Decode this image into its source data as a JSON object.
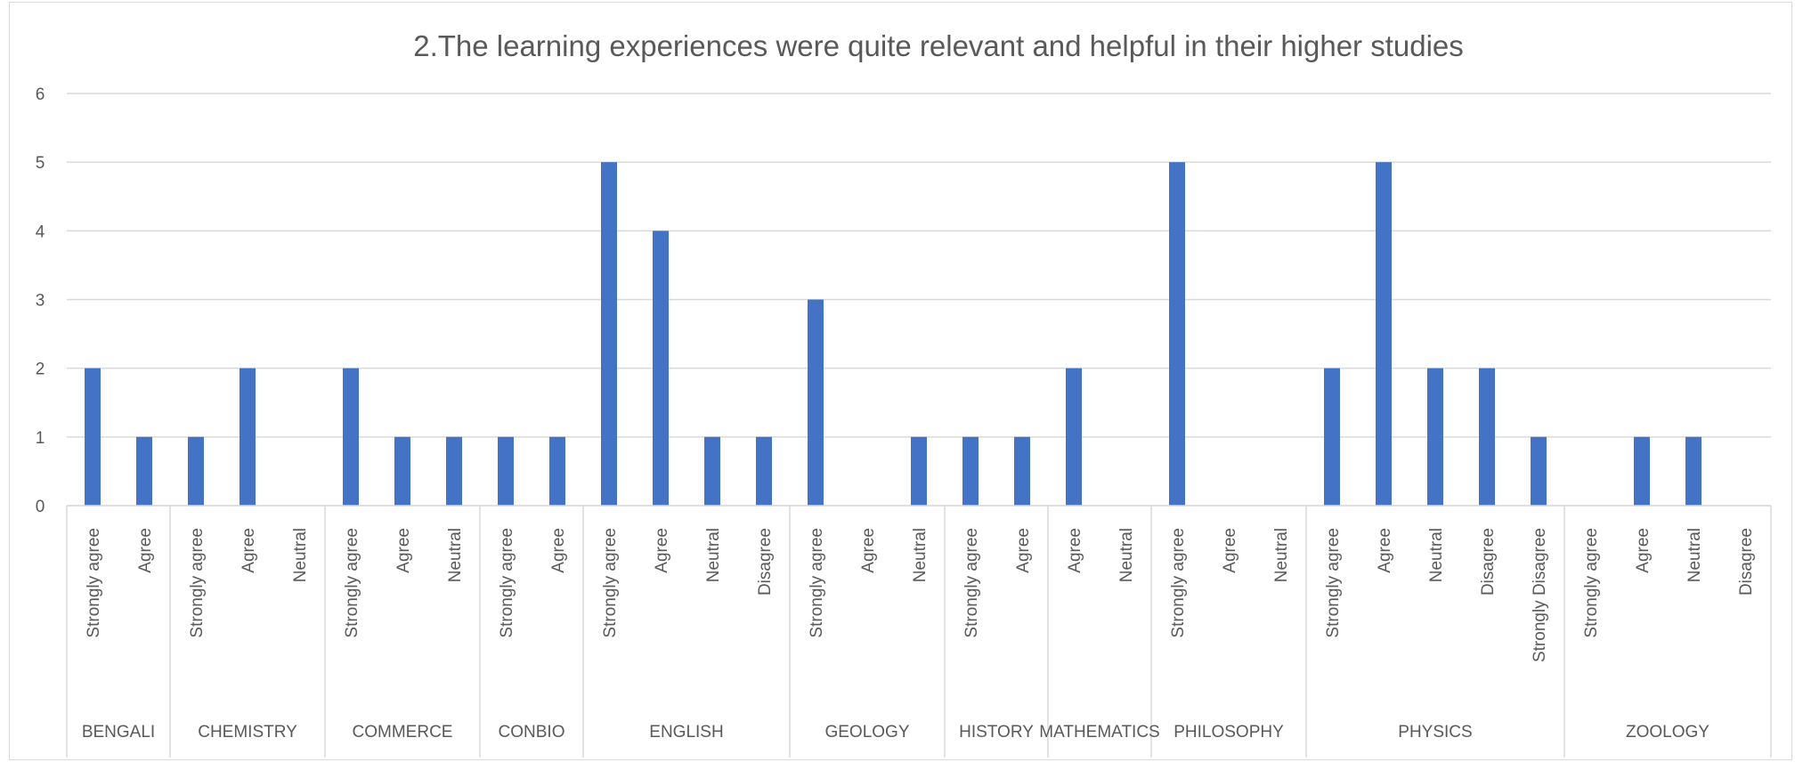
{
  "chart_data": {
    "type": "bar",
    "title": "2.The learning experiences were quite relevant and helpful in their higher studies",
    "xlabel": "",
    "ylabel": "",
    "ylim": [
      0,
      6
    ],
    "yticks": [
      "0",
      "1",
      "2",
      "3",
      "4",
      "5",
      "6"
    ],
    "grid": true,
    "legend": "none",
    "bar_color": "#4472c4",
    "groups": [
      {
        "name": "BENGALI",
        "categories": [
          "Strongly agree",
          "Agree"
        ],
        "values": [
          2,
          1
        ]
      },
      {
        "name": "CHEMISTRY",
        "categories": [
          "Strongly agree",
          "Agree",
          "Neutral"
        ],
        "values": [
          1,
          2,
          0
        ]
      },
      {
        "name": "COMMERCE",
        "categories": [
          "Strongly agree",
          "Agree",
          "Neutral"
        ],
        "values": [
          2,
          1,
          1
        ]
      },
      {
        "name": "CONBIO",
        "categories": [
          "Strongly agree",
          "Agree"
        ],
        "values": [
          1,
          1
        ]
      },
      {
        "name": "ENGLISH",
        "categories": [
          "Strongly agree",
          "Agree",
          "Neutral",
          "Disagree"
        ],
        "values": [
          5,
          4,
          1,
          1
        ]
      },
      {
        "name": "GEOLOGY",
        "categories": [
          "Strongly agree",
          "Agree",
          "Neutral"
        ],
        "values": [
          3,
          0,
          1
        ]
      },
      {
        "name": "HISTORY",
        "categories": [
          "Strongly agree",
          "Agree"
        ],
        "values": [
          1,
          1
        ]
      },
      {
        "name": "MATHEMATICS",
        "categories": [
          "Agree",
          "Neutral"
        ],
        "values": [
          2,
          0
        ]
      },
      {
        "name": "PHILOSOPHY",
        "categories": [
          "Strongly agree",
          "Agree",
          "Neutral"
        ],
        "values": [
          5,
          0,
          0
        ]
      },
      {
        "name": "PHYSICS",
        "categories": [
          "Strongly agree",
          "Agree",
          "Neutral",
          "Disagree",
          "Strongly Disagree"
        ],
        "values": [
          2,
          5,
          2,
          2,
          1
        ]
      },
      {
        "name": "ZOOLOGY",
        "categories": [
          "Strongly agree",
          "Agree",
          "Neutral",
          "Disagree"
        ],
        "values": [
          0,
          1,
          1,
          0
        ]
      }
    ]
  }
}
